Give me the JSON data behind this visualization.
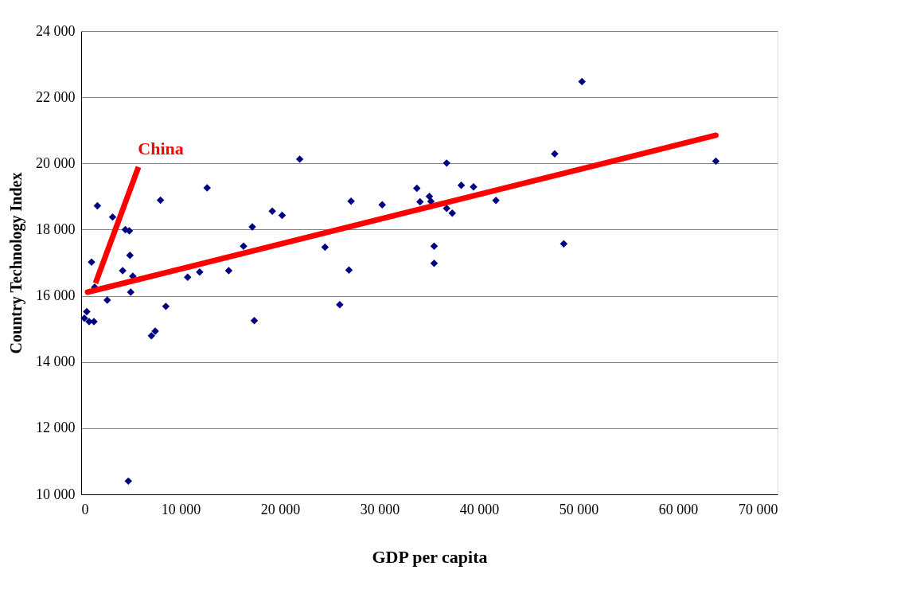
{
  "chart_data": {
    "type": "scatter",
    "xlabel": "GDP per capita",
    "ylabel": "Country Technology Index",
    "xlim": [
      0,
      70000
    ],
    "ylim": [
      10000,
      24000
    ],
    "xticks": [
      0,
      {
        "value": 10000,
        "label": "10 000"
      },
      {
        "value": 20000,
        "label": "20 000"
      },
      {
        "value": 30000,
        "label": "30 000"
      },
      {
        "value": 40000,
        "label": "40 000"
      },
      {
        "value": 50000,
        "label": "50 000"
      },
      {
        "value": 60000,
        "label": "60 000"
      },
      {
        "value": 70000,
        "label": "70 000"
      }
    ],
    "yticks": [
      {
        "value": 10000,
        "label": "10 000"
      },
      {
        "value": 12000,
        "label": "12 000"
      },
      {
        "value": 14000,
        "label": "14 000"
      },
      {
        "value": 16000,
        "label": "16 000"
      },
      {
        "value": 18000,
        "label": "18 000"
      },
      {
        "value": 20000,
        "label": "20 000"
      },
      {
        "value": 22000,
        "label": "22 000"
      },
      {
        "value": 24000,
        "label": "24 000"
      }
    ],
    "grid": "y",
    "marker": "diamond",
    "annotations": [
      {
        "text": "China",
        "x": 1360,
        "y": 16260
      }
    ],
    "series": [
      {
        "color": "#000080",
        "x": [
          21970,
          12660,
          7970,
          1630,
          3160,
          4440,
          4840,
          19210,
          20200,
          17200,
          16320,
          4900,
          1040,
          4170,
          14830,
          11910,
          10700,
          5190,
          1360,
          4980,
          2620,
          8510,
          560,
          320,
          800,
          1280,
          17400,
          7440,
          7060,
          4740,
          36740,
          27130,
          30260,
          33740,
          34060,
          35000,
          35160,
          38210,
          39440,
          36740,
          37300,
          41690,
          24510,
          26920,
          35480,
          35480,
          25990,
          50340,
          47600,
          63800,
          48510
        ],
        "values": [
          20130,
          19260,
          18890,
          18720,
          18380,
          18000,
          17960,
          18560,
          18430,
          18080,
          17500,
          17220,
          17020,
          16760,
          16760,
          16720,
          16560,
          16590,
          16260,
          16110,
          15870,
          15680,
          15520,
          15320,
          15220,
          15220,
          15250,
          14930,
          14790,
          10400,
          20010,
          18860,
          18750,
          19250,
          18840,
          19000,
          18850,
          19340,
          19290,
          18640,
          18500,
          18880,
          17470,
          16780,
          17500,
          16980,
          15730,
          22470,
          20290,
          20070,
          17570
        ]
      },
      {
        "type": "line",
        "color": "#ff0000",
        "marker": "none",
        "x": [
          640,
          63800
        ],
        "values": [
          16110,
          20850
        ]
      }
    ]
  }
}
